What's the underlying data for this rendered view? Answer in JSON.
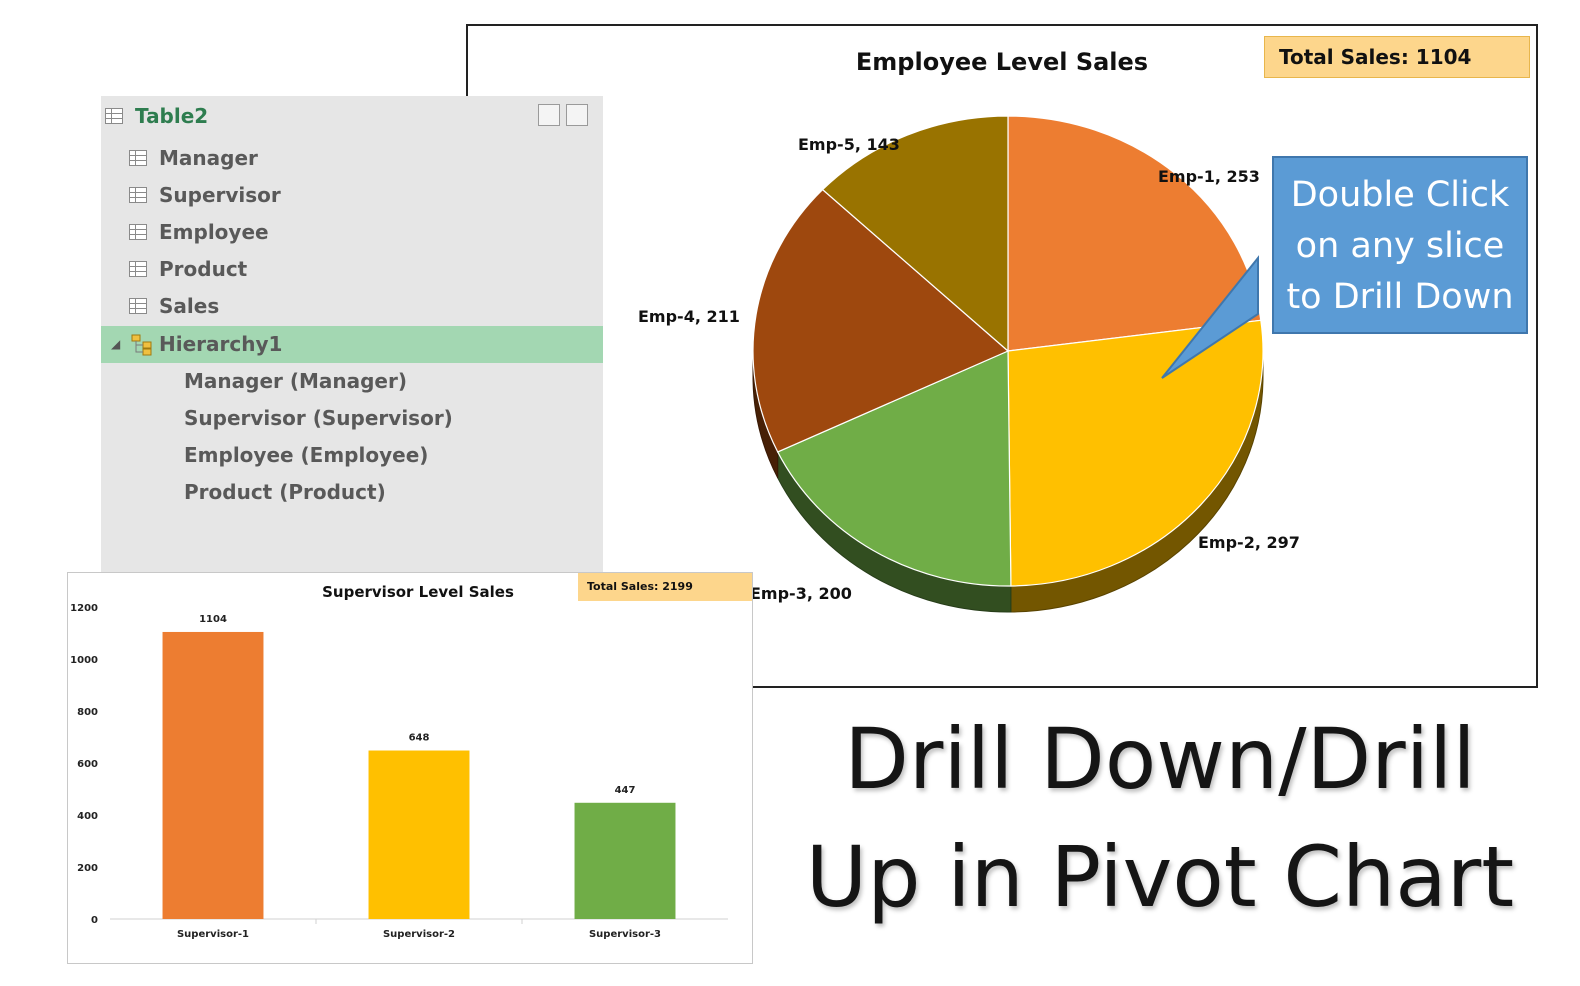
{
  "field_list": {
    "table_name": "Table2",
    "fields": [
      "Manager",
      "Supervisor",
      "Employee",
      "Product",
      "Sales"
    ],
    "hierarchy": {
      "name": "Hierarchy1",
      "levels": [
        "Manager (Manager)",
        "Supervisor (Supervisor)",
        "Employee (Employee)",
        "Product (Product)"
      ]
    }
  },
  "callout": {
    "lines": [
      "Double Click",
      "on any slice",
      "to Drill Down"
    ],
    "color": "#5b9bd5"
  },
  "big_title": {
    "line1": "Drill Down/Drill",
    "line2": "Up in Pivot Chart"
  },
  "chart_data": [
    {
      "type": "pie",
      "title": "Employee Level Sales",
      "total_label": "Total Sales: 1104",
      "labels": [
        "Emp-1",
        "Emp-2",
        "Emp-3",
        "Emp-4",
        "Emp-5"
      ],
      "values": [
        253,
        297,
        200,
        211,
        143
      ],
      "data_labels": [
        "Emp-1, 253",
        "Emp-2, 297",
        "Emp-3, 200",
        "Emp-4, 211",
        "Emp-5, 143"
      ],
      "colors": [
        "#ed7d31",
        "#ffc000",
        "#70ad47",
        "#9e480e",
        "#997300"
      ],
      "style": "3d"
    },
    {
      "type": "bar",
      "title": "Supervisor Level Sales",
      "total_label": "Total Sales: 2199",
      "categories": [
        "Supervisor-1",
        "Supervisor-2",
        "Supervisor-3"
      ],
      "values": [
        1104,
        648,
        447
      ],
      "colors": [
        "#ed7d31",
        "#ffc000",
        "#70ad47"
      ],
      "ylim": [
        0,
        1200
      ],
      "yticks": [
        0,
        200,
        400,
        600,
        800,
        1000,
        1200
      ],
      "xlabel": "",
      "ylabel": ""
    }
  ]
}
